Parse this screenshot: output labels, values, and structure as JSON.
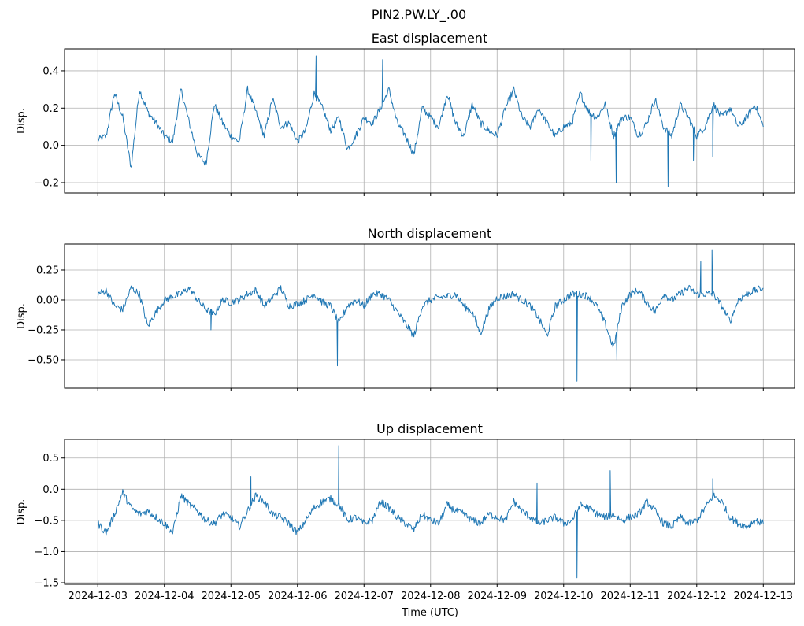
{
  "chart_data": [
    {
      "type": "line",
      "suptitle": "PIN2.PW.LY_.00",
      "title": "East displacement",
      "ylabel": "Disp.",
      "xlabel": "",
      "x_unit": "days since 2024-12-03 00:00 UTC (3-hour samples)",
      "xlim": [
        -0.5,
        10.47
      ],
      "ylim": [
        -0.255,
        0.518
      ],
      "yticks": [
        0.4,
        0.2,
        0.0,
        -0.2
      ],
      "ytick_labels": [
        "0.4",
        "0.2",
        "0.0",
        "−0.2"
      ],
      "grid": true,
      "color": "#1f77b4",
      "values": [
        0.03,
        0.05,
        0.28,
        0.15,
        -0.12,
        0.3,
        0.18,
        0.12,
        0.05,
        0.02,
        0.3,
        0.12,
        -0.05,
        -0.1,
        0.22,
        0.12,
        0.05,
        0.02,
        0.3,
        0.18,
        0.05,
        0.25,
        0.1,
        0.12,
        0.02,
        0.08,
        0.28,
        0.2,
        0.08,
        0.15,
        -0.02,
        0.05,
        0.15,
        0.12,
        0.2,
        0.3,
        0.12,
        0.05,
        -0.05,
        0.2,
        0.15,
        0.1,
        0.28,
        0.12,
        0.05,
        0.22,
        0.12,
        0.08,
        0.05,
        0.2,
        0.3,
        0.15,
        0.1,
        0.2,
        0.12,
        0.05,
        0.1,
        0.12,
        0.28,
        0.18,
        0.15,
        0.22,
        0.05,
        0.15,
        0.15,
        0.05,
        0.12,
        0.25,
        0.1,
        0.05,
        0.22,
        0.15,
        0.05,
        0.1,
        0.22,
        0.15,
        0.2,
        0.1,
        0.15,
        0.22,
        0.1
      ],
      "spikes": [
        [
          3.28,
          0.48
        ],
        [
          4.28,
          0.46
        ],
        [
          7.41,
          -0.08
        ],
        [
          7.79,
          -0.2
        ],
        [
          8.57,
          -0.22
        ],
        [
          8.95,
          -0.08
        ],
        [
          9.24,
          -0.06
        ]
      ]
    },
    {
      "type": "line",
      "title": "North displacement",
      "ylabel": "Disp.",
      "xlabel": "",
      "xlim": [
        -0.5,
        10.47
      ],
      "ylim": [
        -0.737,
        0.467
      ],
      "yticks": [
        0.25,
        0.0,
        -0.25,
        -0.5
      ],
      "ytick_labels": [
        "0.25",
        "0.00",
        "−0.25",
        "−0.50"
      ],
      "grid": true,
      "color": "#1f77b4",
      "values": [
        0.05,
        0.08,
        -0.05,
        -0.08,
        0.1,
        0.05,
        -0.22,
        -0.1,
        0.0,
        0.03,
        0.05,
        0.1,
        0.0,
        -0.08,
        -0.12,
        0.0,
        -0.02,
        0.0,
        0.05,
        0.08,
        -0.05,
        0.02,
        0.1,
        -0.05,
        -0.03,
        0.0,
        0.05,
        -0.02,
        -0.05,
        -0.2,
        -0.05,
        0.0,
        -0.05,
        0.05,
        0.05,
        0.0,
        -0.1,
        -0.2,
        -0.3,
        -0.05,
        0.0,
        0.02,
        0.03,
        0.05,
        -0.05,
        -0.1,
        -0.28,
        -0.08,
        0.02,
        0.03,
        0.05,
        0.0,
        -0.05,
        -0.15,
        -0.3,
        -0.05,
        0.0,
        0.05,
        0.05,
        0.03,
        -0.05,
        -0.2,
        -0.4,
        -0.05,
        0.05,
        0.08,
        -0.02,
        -0.1,
        0.05,
        0.0,
        0.05,
        0.1,
        0.05,
        0.05,
        0.05,
        -0.05,
        -0.18,
        0.0,
        0.05,
        0.08,
        0.1
      ],
      "spikes": [
        [
          1.7,
          -0.25
        ],
        [
          3.6,
          -0.55
        ],
        [
          7.2,
          -0.68
        ],
        [
          7.8,
          -0.5
        ],
        [
          9.06,
          0.32
        ],
        [
          9.23,
          0.42
        ]
      ]
    },
    {
      "type": "line",
      "title": "Up displacement",
      "ylabel": "Disp.",
      "xlabel": "Time (UTC)",
      "xlim": [
        -0.5,
        10.47
      ],
      "ylim": [
        -1.525,
        0.8
      ],
      "yticks": [
        0.5,
        0.0,
        -0.5,
        -1.0,
        -1.5
      ],
      "ytick_labels": [
        "0.5",
        "0.0",
        "−0.5",
        "−1.0",
        "−1.5"
      ],
      "xticks": [
        0,
        1,
        2,
        3,
        4,
        5,
        6,
        7,
        8,
        9,
        10
      ],
      "xtick_labels": [
        "2024-12-03",
        "2024-12-04",
        "2024-12-05",
        "2024-12-06",
        "2024-12-07",
        "2024-12-08",
        "2024-12-09",
        "2024-12-10",
        "2024-12-11",
        "2024-12-12",
        "2024-12-13"
      ],
      "grid": true,
      "color": "#1f77b4",
      "values": [
        -0.55,
        -0.7,
        -0.4,
        -0.05,
        -0.3,
        -0.4,
        -0.35,
        -0.45,
        -0.55,
        -0.7,
        -0.1,
        -0.25,
        -0.35,
        -0.5,
        -0.55,
        -0.4,
        -0.45,
        -0.6,
        -0.35,
        -0.1,
        -0.2,
        -0.4,
        -0.45,
        -0.55,
        -0.7,
        -0.5,
        -0.3,
        -0.2,
        -0.15,
        -0.25,
        -0.5,
        -0.45,
        -0.55,
        -0.5,
        -0.2,
        -0.3,
        -0.45,
        -0.55,
        -0.65,
        -0.4,
        -0.5,
        -0.55,
        -0.25,
        -0.35,
        -0.4,
        -0.5,
        -0.55,
        -0.4,
        -0.45,
        -0.5,
        -0.2,
        -0.35,
        -0.45,
        -0.55,
        -0.5,
        -0.45,
        -0.55,
        -0.5,
        -0.25,
        -0.3,
        -0.4,
        -0.45,
        -0.4,
        -0.5,
        -0.45,
        -0.4,
        -0.2,
        -0.35,
        -0.55,
        -0.6,
        -0.45,
        -0.55,
        -0.5,
        -0.3,
        -0.1,
        -0.2,
        -0.45,
        -0.55,
        -0.6,
        -0.5,
        -0.55
      ],
      "spikes": [
        [
          2.3,
          0.2
        ],
        [
          3.62,
          0.7
        ],
        [
          6.6,
          0.1
        ],
        [
          7.2,
          -1.42
        ],
        [
          7.7,
          0.3
        ],
        [
          9.24,
          0.17
        ]
      ]
    }
  ]
}
